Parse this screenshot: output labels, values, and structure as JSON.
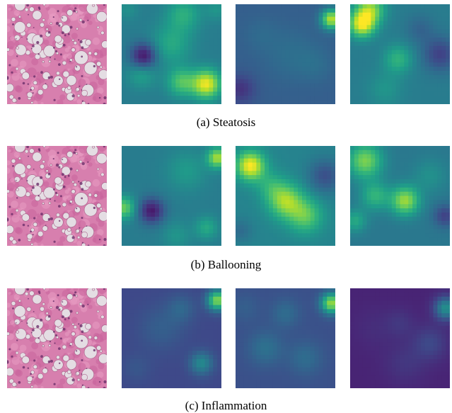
{
  "figure": {
    "rows": [
      {
        "caption": "(a) Steatosis",
        "tiles": [
          {
            "kind": "he-stain"
          },
          {
            "kind": "heatmap",
            "colormap": "viridis",
            "base": 0.42,
            "blobs": [
              [
                0.22,
                0.52,
                0.09,
                -0.38
              ],
              [
                0.62,
                0.1,
                0.12,
                0.2
              ],
              [
                0.2,
                0.7,
                0.1,
                0.15
              ],
              [
                0.85,
                0.8,
                0.1,
                0.55
              ],
              [
                0.6,
                0.78,
                0.1,
                0.3
              ],
              [
                0.5,
                0.4,
                0.14,
                0.18
              ],
              [
                0.95,
                0.05,
                0.08,
                0.1
              ],
              [
                0.05,
                0.05,
                0.08,
                0.08
              ]
            ]
          },
          {
            "kind": "heatmap",
            "colormap": "viridis",
            "base": 0.3,
            "blobs": [
              [
                0.96,
                0.15,
                0.07,
                0.6
              ],
              [
                0.05,
                0.85,
                0.1,
                -0.15
              ],
              [
                0.55,
                0.5,
                0.18,
                0.06
              ],
              [
                0.25,
                0.3,
                0.12,
                0.04
              ],
              [
                0.8,
                0.6,
                0.12,
                0.05
              ]
            ]
          },
          {
            "kind": "heatmap",
            "colormap": "viridis",
            "base": 0.42,
            "blobs": [
              [
                0.12,
                0.2,
                0.09,
                0.55
              ],
              [
                0.2,
                0.05,
                0.1,
                0.4
              ],
              [
                0.48,
                0.55,
                0.1,
                0.22
              ],
              [
                0.9,
                0.5,
                0.12,
                -0.22
              ],
              [
                0.7,
                0.25,
                0.1,
                -0.1
              ],
              [
                0.35,
                0.85,
                0.12,
                0.1
              ]
            ]
          }
        ]
      },
      {
        "caption": "(b) Ballooning",
        "tiles": [
          {
            "kind": "he-stain"
          },
          {
            "kind": "heatmap",
            "colormap": "viridis",
            "base": 0.42,
            "blobs": [
              [
                0.96,
                0.12,
                0.07,
                0.45
              ],
              [
                0.3,
                0.65,
                0.09,
                -0.35
              ],
              [
                0.02,
                0.62,
                0.08,
                0.35
              ],
              [
                0.65,
                0.25,
                0.14,
                0.12
              ],
              [
                0.85,
                0.82,
                0.08,
                0.18
              ],
              [
                0.55,
                0.9,
                0.1,
                0.1
              ]
            ]
          },
          {
            "kind": "heatmap",
            "colormap": "viridis",
            "base": 0.45,
            "blobs": [
              [
                0.15,
                0.2,
                0.1,
                0.55
              ],
              [
                0.5,
                0.55,
                0.12,
                0.4
              ],
              [
                0.7,
                0.7,
                0.12,
                0.3
              ],
              [
                0.9,
                0.3,
                0.12,
                -0.2
              ],
              [
                0.05,
                0.85,
                0.08,
                -0.1
              ],
              [
                0.35,
                0.4,
                0.1,
                0.15
              ]
            ]
          },
          {
            "kind": "heatmap",
            "colormap": "viridis",
            "base": 0.4,
            "blobs": [
              [
                0.55,
                0.55,
                0.1,
                0.45
              ],
              [
                0.15,
                0.15,
                0.12,
                0.4
              ],
              [
                0.25,
                0.5,
                0.1,
                0.25
              ],
              [
                0.95,
                0.7,
                0.08,
                -0.2
              ],
              [
                0.8,
                0.3,
                0.12,
                0.1
              ],
              [
                0.05,
                0.75,
                0.08,
                0.2
              ]
            ]
          }
        ]
      },
      {
        "caption": "(c) Inflammation",
        "tiles": [
          {
            "kind": "he-stain"
          },
          {
            "kind": "heatmap",
            "colormap": "viridis",
            "base": 0.22,
            "blobs": [
              [
                0.96,
                0.12,
                0.07,
                0.6
              ],
              [
                0.8,
                0.75,
                0.08,
                0.25
              ],
              [
                0.4,
                0.4,
                0.16,
                0.08
              ],
              [
                0.15,
                0.8,
                0.1,
                0.05
              ],
              [
                0.6,
                0.2,
                0.1,
                0.1
              ]
            ]
          },
          {
            "kind": "heatmap",
            "colormap": "viridis",
            "base": 0.25,
            "blobs": [
              [
                0.96,
                0.15,
                0.07,
                0.6
              ],
              [
                0.3,
                0.6,
                0.12,
                0.12
              ],
              [
                0.7,
                0.7,
                0.12,
                0.1
              ],
              [
                0.5,
                0.25,
                0.1,
                0.1
              ],
              [
                0.1,
                0.2,
                0.1,
                0.05
              ]
            ]
          },
          {
            "kind": "heatmap",
            "colormap": "viridis",
            "base": 0.1,
            "blobs": [
              [
                0.96,
                0.2,
                0.08,
                0.4
              ],
              [
                0.55,
                0.75,
                0.14,
                0.06
              ],
              [
                0.8,
                0.55,
                0.12,
                0.12
              ],
              [
                0.25,
                0.4,
                0.14,
                0.03
              ],
              [
                0.5,
                0.35,
                0.1,
                0.06
              ]
            ]
          }
        ]
      }
    ]
  }
}
